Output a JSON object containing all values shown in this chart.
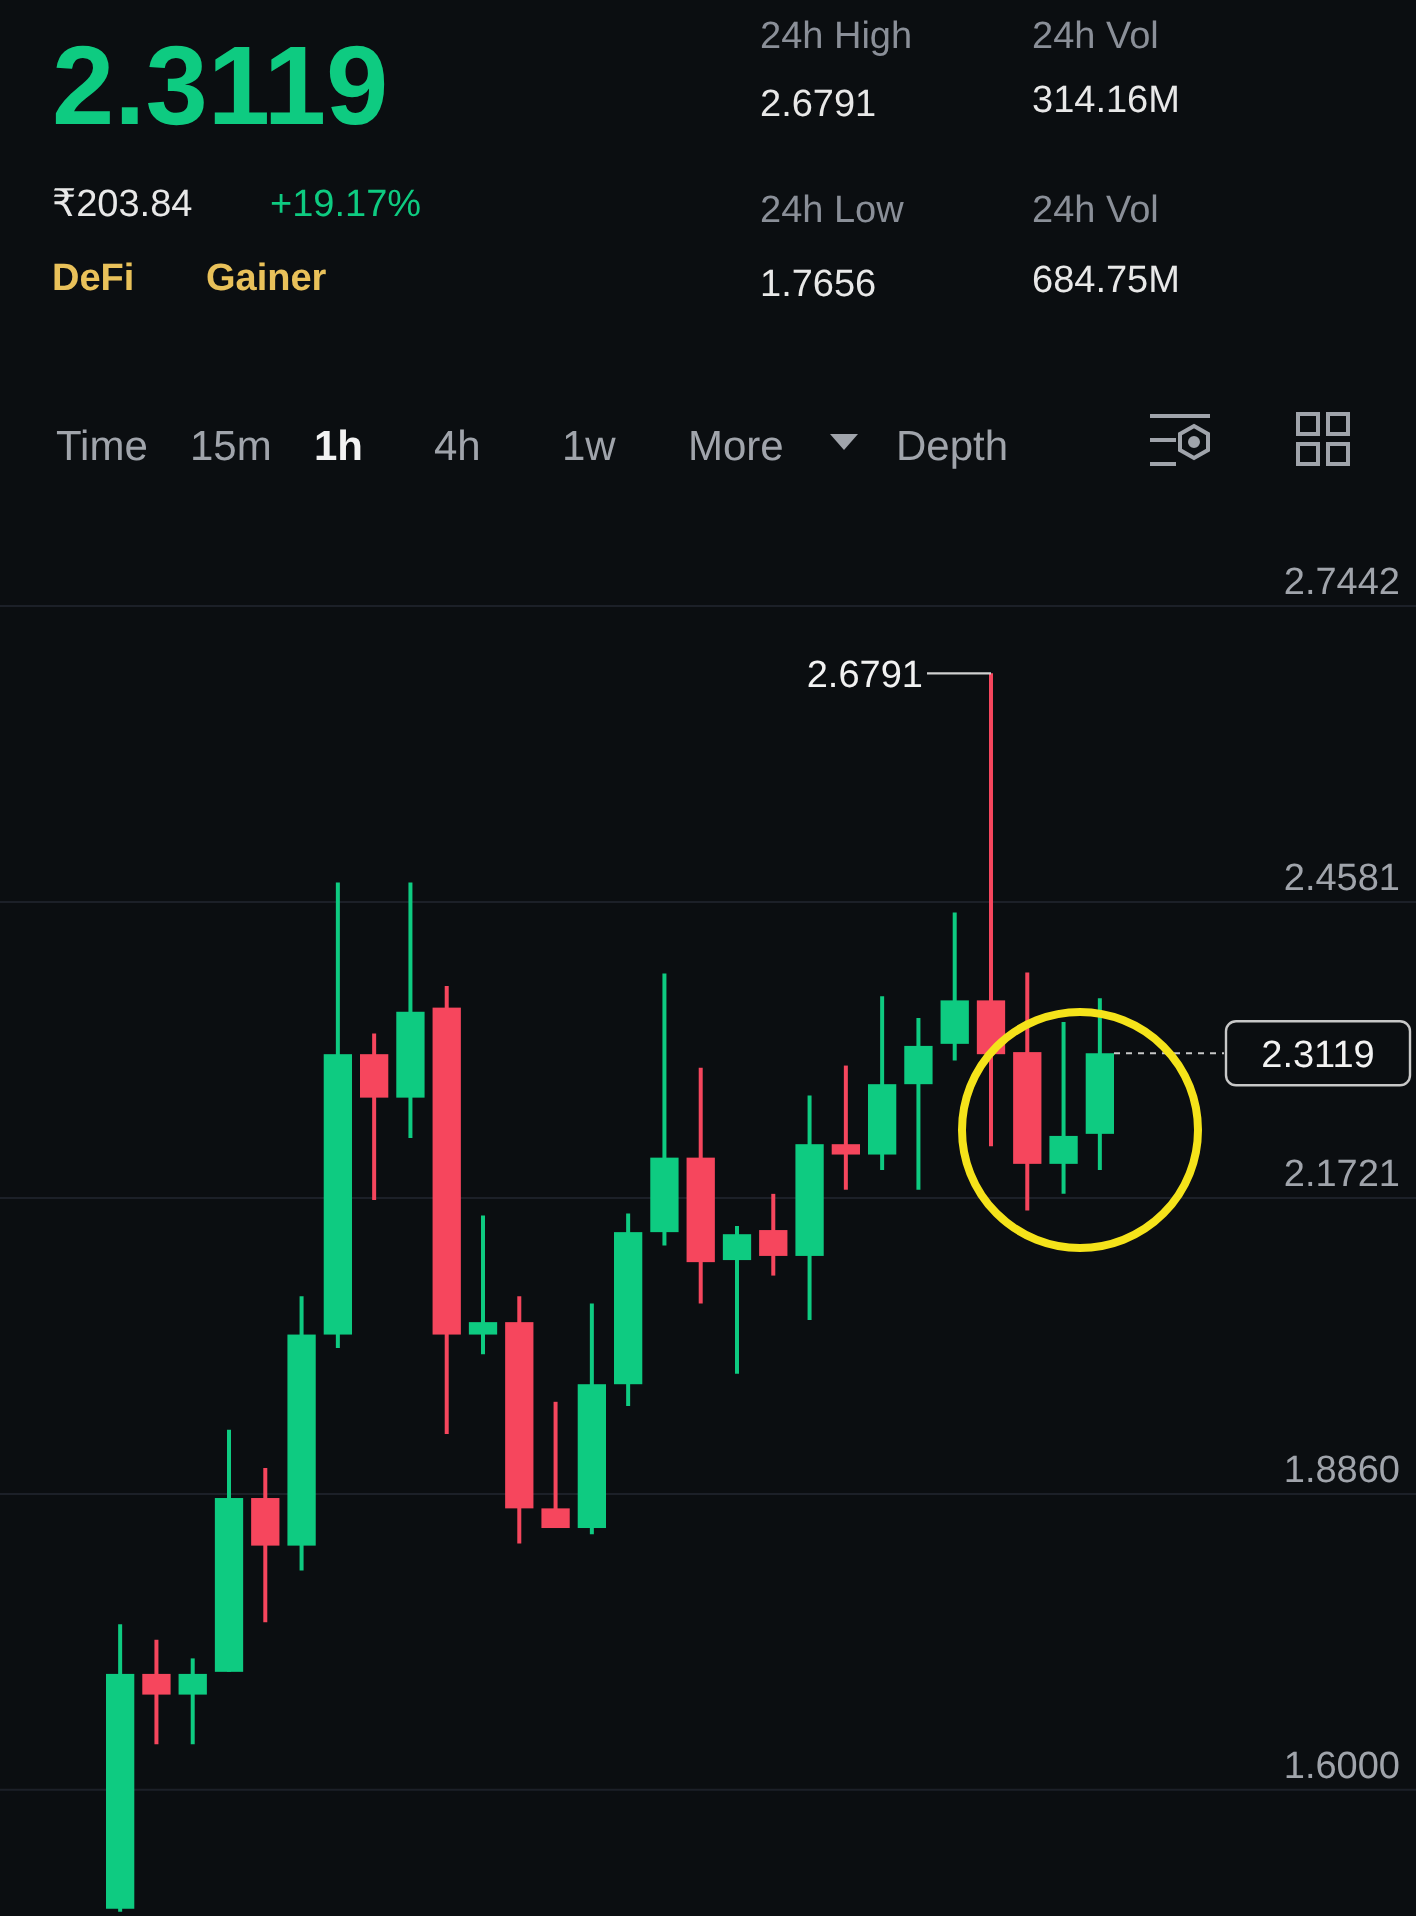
{
  "chart_data": [
    {
      "type": "other",
      "annotations": [
        "2.3119",
        "₹203.84",
        "+19.17%",
        "DeFi",
        "Gainer",
        "24h High",
        "2.6791",
        "24h Low",
        "1.7656",
        "24h Vol",
        "314.16M",
        "24h Vol",
        "684.75M",
        "Time",
        "15m",
        "1h",
        "4h",
        "1w",
        "More",
        "Depth"
      ]
    },
    {
      "type": "candlestick",
      "categories": [
        null,
        null,
        null,
        null,
        null,
        null,
        null,
        null,
        null,
        null,
        null,
        null,
        null,
        null,
        null,
        null,
        null,
        null,
        null,
        null,
        null,
        null,
        null,
        null,
        null,
        null,
        null,
        null
      ],
      "ohlc": [
        [
          1.485,
          1.76,
          1.482,
          1.712
        ],
        [
          1.712,
          1.745,
          1.644,
          1.692
        ],
        [
          1.692,
          1.727,
          1.644,
          1.712
        ],
        [
          1.714,
          1.948,
          1.714,
          1.882
        ],
        [
          1.882,
          1.911,
          1.762,
          1.836
        ],
        [
          1.836,
          2.077,
          1.812,
          2.04
        ],
        [
          2.04,
          2.477,
          2.027,
          2.311
        ],
        [
          2.311,
          2.331,
          2.17,
          2.269
        ],
        [
          2.269,
          2.477,
          2.23,
          2.352
        ],
        [
          2.356,
          2.377,
          1.944,
          2.04
        ],
        [
          2.04,
          2.155,
          2.021,
          2.052
        ],
        [
          2.052,
          2.077,
          1.838,
          1.872
        ],
        [
          1.872,
          1.975,
          1.853,
          1.853
        ],
        [
          1.853,
          2.07,
          1.847,
          1.992
        ],
        [
          1.992,
          2.157,
          1.971,
          2.139
        ],
        [
          2.139,
          2.389,
          2.126,
          2.211
        ],
        [
          2.211,
          2.298,
          2.07,
          2.11
        ],
        [
          2.112,
          2.145,
          2.002,
          2.137
        ],
        [
          2.141,
          2.176,
          2.097,
          2.116
        ],
        [
          2.116,
          2.271,
          2.054,
          2.224
        ],
        [
          2.224,
          2.3,
          2.18,
          2.214
        ],
        [
          2.214,
          2.367,
          2.199,
          2.282
        ],
        [
          2.282,
          2.346,
          2.18,
          2.319
        ],
        [
          2.321,
          2.448,
          2.305,
          2.363
        ],
        [
          2.363,
          2.6791,
          2.222,
          2.311
        ],
        [
          2.313,
          2.39,
          2.16,
          2.205
        ],
        [
          2.205,
          2.342,
          2.176,
          2.232
        ],
        [
          2.234,
          2.365,
          2.199,
          2.3119
        ]
      ],
      "ylim": [
        1.478,
        2.7442
      ],
      "yticks": [
        2.7442,
        2.4581,
        2.1721,
        {
          "value": 1.886,
          "label": "1.8860"
        },
        {
          "value": 1.6,
          "label": "1.6000"
        }
      ],
      "grid": "y",
      "tick_labels": "y",
      "ref_lines": [
        {
          "axis": "y",
          "value": 2.3119,
          "label": "2.3119",
          "line_style": "dotted"
        }
      ],
      "annotations": [
        "2.6791"
      ]
    }
  ]
}
